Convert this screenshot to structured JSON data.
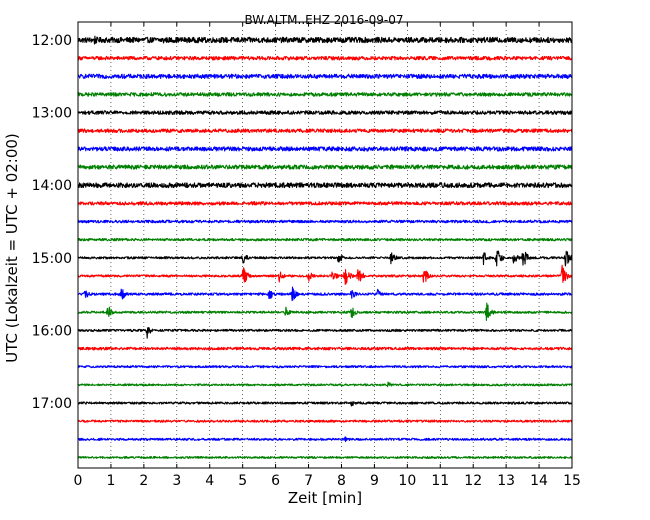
{
  "chart_data": {
    "type": "line",
    "title": "BW.ALTM..EHZ 2016-09-07",
    "xlabel": "Zeit  [min]",
    "ylabel": "UTC (Lokalzeit = UTC + 02:00)",
    "xlim": [
      0,
      15
    ],
    "x_ticks": [
      0,
      1,
      2,
      3,
      4,
      5,
      6,
      7,
      8,
      9,
      10,
      11,
      12,
      13,
      14,
      15
    ],
    "y_tick_labels": [
      "12:00",
      "13:00",
      "14:00",
      "15:00",
      "16:00",
      "17:00"
    ],
    "row_interval_minutes": 15,
    "grid": "vertical dotted at each minute",
    "colors": [
      "#000000",
      "#ff0000",
      "#0000ff",
      "#008000"
    ],
    "series": [
      {
        "start": "12:00",
        "color": "#000000",
        "noise": 0.45,
        "events": [
          {
            "t": 0.5,
            "amp": 0.9
          },
          {
            "t": 2.6,
            "amp": 0.7
          }
        ]
      },
      {
        "start": "12:15",
        "color": "#ff0000",
        "noise": 0.3,
        "events": []
      },
      {
        "start": "12:30",
        "color": "#0000ff",
        "noise": 0.35,
        "events": []
      },
      {
        "start": "12:45",
        "color": "#008000",
        "noise": 0.3,
        "events": []
      },
      {
        "start": "13:00",
        "color": "#000000",
        "noise": 0.3,
        "events": []
      },
      {
        "start": "13:15",
        "color": "#ff0000",
        "noise": 0.3,
        "events": []
      },
      {
        "start": "13:30",
        "color": "#0000ff",
        "noise": 0.35,
        "events": []
      },
      {
        "start": "13:45",
        "color": "#008000",
        "noise": 0.35,
        "events": []
      },
      {
        "start": "14:00",
        "color": "#000000",
        "noise": 0.4,
        "events": []
      },
      {
        "start": "14:15",
        "color": "#ff0000",
        "noise": 0.28,
        "events": []
      },
      {
        "start": "14:30",
        "color": "#0000ff",
        "noise": 0.22,
        "events": []
      },
      {
        "start": "14:45",
        "color": "#008000",
        "noise": 0.2,
        "events": []
      },
      {
        "start": "15:00",
        "color": "#000000",
        "noise": 0.18,
        "events": [
          {
            "t": 5.0,
            "amp": 1.3
          },
          {
            "t": 7.9,
            "amp": 1.2
          },
          {
            "t": 9.5,
            "amp": 1.3
          },
          {
            "t": 12.3,
            "amp": 1.3
          },
          {
            "t": 12.7,
            "amp": 2.0
          },
          {
            "t": 13.2,
            "amp": 1.4
          },
          {
            "t": 13.5,
            "amp": 2.0
          },
          {
            "t": 14.8,
            "amp": 2.0
          }
        ]
      },
      {
        "start": "15:15",
        "color": "#ff0000",
        "noise": 0.18,
        "events": [
          {
            "t": 5.0,
            "amp": 2.0
          },
          {
            "t": 6.1,
            "amp": 1.2
          },
          {
            "t": 7.0,
            "amp": 1.0
          },
          {
            "t": 7.7,
            "amp": 1.4
          },
          {
            "t": 8.1,
            "amp": 2.0
          },
          {
            "t": 8.5,
            "amp": 1.8
          },
          {
            "t": 10.5,
            "amp": 2.0
          },
          {
            "t": 14.7,
            "amp": 2.0
          }
        ]
      },
      {
        "start": "15:30",
        "color": "#0000ff",
        "noise": 0.2,
        "events": [
          {
            "t": 0.2,
            "amp": 1.2
          },
          {
            "t": 1.3,
            "amp": 1.4
          },
          {
            "t": 5.8,
            "amp": 1.4
          },
          {
            "t": 6.5,
            "amp": 1.5
          },
          {
            "t": 8.3,
            "amp": 1.0
          },
          {
            "t": 9.1,
            "amp": 0.9
          }
        ]
      },
      {
        "start": "15:45",
        "color": "#008000",
        "noise": 0.18,
        "events": [
          {
            "t": 0.9,
            "amp": 1.3
          },
          {
            "t": 6.3,
            "amp": 1.0
          },
          {
            "t": 8.3,
            "amp": 1.1
          },
          {
            "t": 12.4,
            "amp": 2.0
          }
        ]
      },
      {
        "start": "16:00",
        "color": "#000000",
        "noise": 0.18,
        "events": [
          {
            "t": 2.1,
            "amp": 1.3
          }
        ]
      },
      {
        "start": "16:15",
        "color": "#ff0000",
        "noise": 0.22,
        "events": []
      },
      {
        "start": "16:30",
        "color": "#0000ff",
        "noise": 0.18,
        "events": []
      },
      {
        "start": "16:45",
        "color": "#008000",
        "noise": 0.16,
        "events": [
          {
            "t": 9.4,
            "amp": 0.6
          }
        ]
      },
      {
        "start": "17:00",
        "color": "#000000",
        "noise": 0.18,
        "events": [
          {
            "t": 8.3,
            "amp": 0.7
          }
        ]
      },
      {
        "start": "17:15",
        "color": "#ff0000",
        "noise": 0.18,
        "events": []
      },
      {
        "start": "17:30",
        "color": "#0000ff",
        "noise": 0.18,
        "events": [
          {
            "t": 8.1,
            "amp": 0.5
          }
        ]
      },
      {
        "start": "17:45",
        "color": "#008000",
        "noise": 0.16,
        "events": []
      }
    ]
  }
}
